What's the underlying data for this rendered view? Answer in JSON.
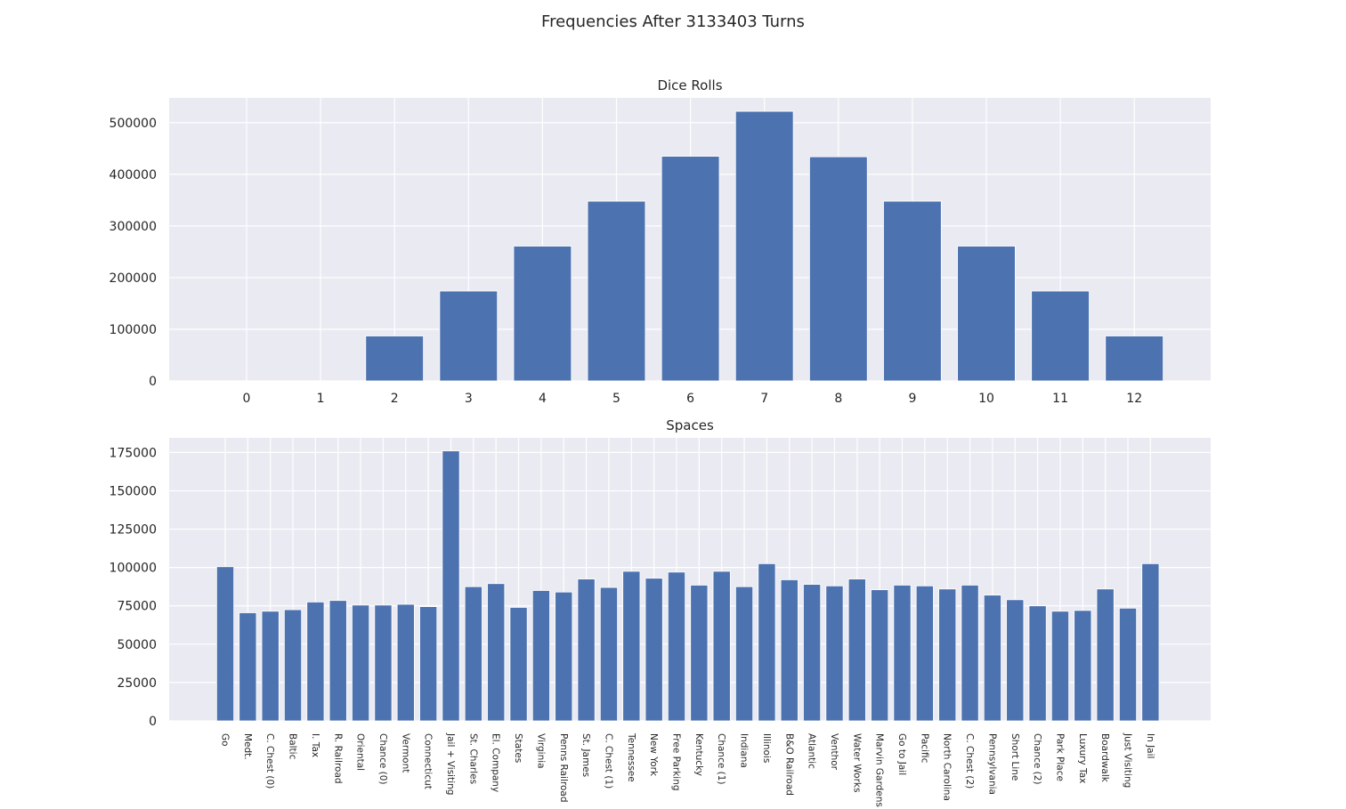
{
  "figure": {
    "suptitle": "Frequencies After 3133403 Turns",
    "colors": {
      "bar": "#4c72b0",
      "axes_bg": "#eaeaf2",
      "grid": "#ffffff",
      "text": "#262626"
    }
  },
  "chart_data": [
    {
      "type": "bar",
      "title": "Dice Rolls",
      "xlabel": "",
      "ylabel": "",
      "categories": [
        "0",
        "1",
        "2",
        "3",
        "4",
        "5",
        "6",
        "7",
        "8",
        "9",
        "10",
        "11",
        "12"
      ],
      "values": [
        0,
        0,
        87000,
        174000,
        261000,
        348000,
        435000,
        522000,
        434000,
        348000,
        261000,
        174000,
        87000
      ],
      "ylim": [
        0,
        548000
      ],
      "yticks": [
        0,
        100000,
        200000,
        300000,
        400000,
        500000
      ],
      "grid": true,
      "legend": "none"
    },
    {
      "type": "bar",
      "title": "Spaces",
      "xlabel": "",
      "ylabel": "",
      "categories": [
        "Go",
        "Medt.",
        "C. Chest (0)",
        "Baltic",
        "I. Tax",
        "R. Railroad",
        "Oriental",
        "Chance (0)",
        "Vermont",
        "Connecticut",
        "Jail + Visiting",
        "St. Charles",
        "El. Company",
        "States",
        "Virginia",
        "Penns Railroad",
        "St. James",
        "C. Chest (1)",
        "Tennessee",
        "New York",
        "Free Parking",
        "Kentucky",
        "Chance (1)",
        "Indiana",
        "Illinois",
        "B&O Railroad",
        "Atlantic",
        "Venthor",
        "Water Works",
        "Marvin Gardens",
        "Go to Jail",
        "Pacific",
        "North Carolina",
        "C. Chest (2)",
        "Pennsylvania",
        "Short Line",
        "Chance (2)",
        "Park Place",
        "Luxury Tax",
        "Boardwalk",
        "Just Visiting",
        "In Jail"
      ],
      "values": [
        100500,
        70500,
        71500,
        72500,
        77500,
        78500,
        75500,
        75500,
        76000,
        74500,
        176000,
        87500,
        89500,
        74000,
        85000,
        84000,
        92500,
        87000,
        97500,
        93000,
        97000,
        88500,
        97500,
        87500,
        102500,
        92000,
        89000,
        88000,
        92500,
        85500,
        88500,
        88000,
        86000,
        88500,
        82000,
        79000,
        75000,
        71500,
        72000,
        86000,
        73500,
        102500
      ],
      "ylim": [
        0,
        184500
      ],
      "yticks": [
        0,
        25000,
        50000,
        75000,
        100000,
        125000,
        150000,
        175000
      ],
      "grid": true,
      "legend": "none"
    }
  ]
}
